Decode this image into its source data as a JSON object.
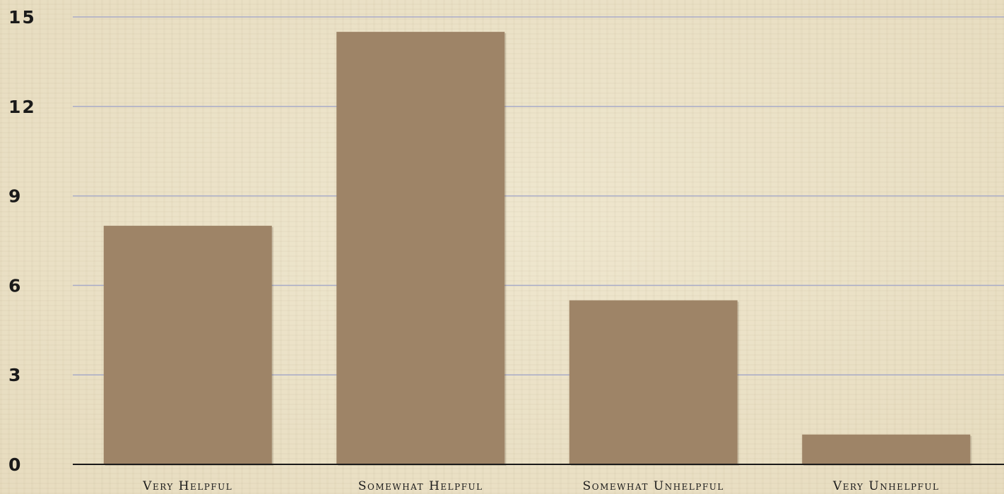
{
  "chart_data": {
    "type": "bar",
    "categories": [
      "Very Helpful",
      "Somewhat Helpful",
      "Somewhat Unhelpful",
      "Very Unhelpful"
    ],
    "values": [
      8,
      14.5,
      5.5,
      1
    ],
    "ylim": [
      0,
      15
    ],
    "yticks": [
      0,
      3,
      6,
      9,
      12,
      15
    ],
    "ytick_labels": [
      "0",
      "3",
      "6",
      "9",
      "12",
      "15"
    ],
    "grid": true,
    "colors": {
      "bar": "#9e8467",
      "grid": "#a9acc8",
      "axis": "#1a1a1a",
      "background": "#ece3c9"
    }
  }
}
